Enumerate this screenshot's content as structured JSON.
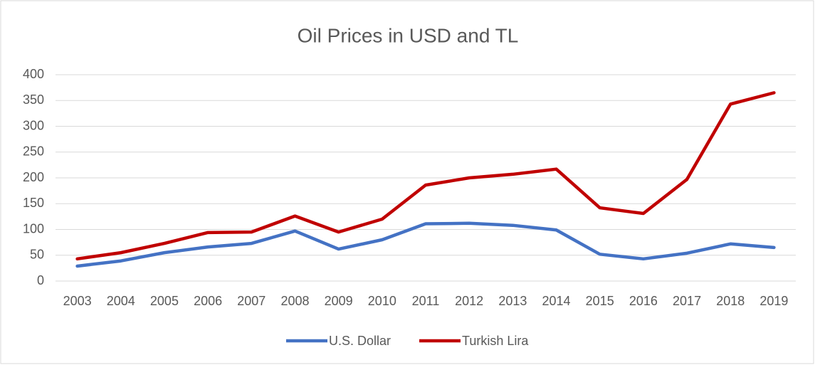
{
  "chart_data": {
    "type": "line",
    "title": "Oil Prices in USD and TL",
    "categories": [
      "2003",
      "2004",
      "2005",
      "2006",
      "2007",
      "2008",
      "2009",
      "2010",
      "2011",
      "2012",
      "2013",
      "2014",
      "2015",
      "2016",
      "2017",
      "2018",
      "2019"
    ],
    "series": [
      {
        "name": "U.S. Dollar",
        "color": "#4472c4",
        "values": [
          29,
          39,
          55,
          66,
          73,
          97,
          62,
          80,
          111,
          112,
          108,
          99,
          52,
          43,
          54,
          72,
          65
        ]
      },
      {
        "name": "Turkish Lira",
        "color": "#c00000",
        "values": [
          43,
          55,
          73,
          94,
          95,
          126,
          95,
          120,
          186,
          200,
          207,
          217,
          142,
          131,
          197,
          343,
          365
        ]
      }
    ],
    "ylim": [
      0,
      400
    ],
    "yticks": [
      0,
      50,
      100,
      150,
      200,
      250,
      300,
      350,
      400
    ],
    "grid": true,
    "legend": "bottom"
  }
}
